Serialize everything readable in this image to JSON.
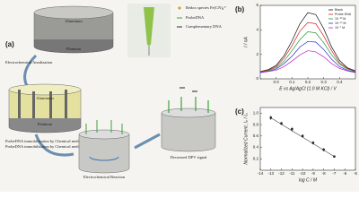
{
  "diagram": {
    "panel_label": "(a)",
    "top_metal": "Aluminum",
    "bottom_metal": "Platinum",
    "step1": "Electrochemical Anodization",
    "porous_metal": "Aluminum",
    "porous_base": "Platinum",
    "step2": "ProbeDNA immobilization by Chemical methods",
    "step3": "Electrochemical Reaction",
    "result": "Decreased DPV signal",
    "legend": [
      "Redox species Fe(CN)₆³⁻",
      "ProbeDNA",
      "Complementary DNA"
    ]
  },
  "chart_data": [
    {
      "type": "line",
      "panel_label": "(b)",
      "xlabel": "E vs Ag/AgCl (1.0 M KCl) / V",
      "ylabel": "I / nA",
      "x": [
        -0.1,
        -0.05,
        0,
        0.05,
        0.1,
        0.15,
        0.2,
        0.25,
        0.3,
        0.35,
        0.4,
        0.45,
        0.5
      ],
      "xlim": [
        -0.1,
        0.5
      ],
      "xticks": [
        {
          "value": 0,
          "label": "0.0"
        },
        0.1,
        0.2,
        0.3,
        0.4
      ],
      "ylim": [
        0,
        6
      ],
      "yticks": [
        0,
        2,
        4,
        6
      ],
      "series": [
        {
          "name": "Blank",
          "color": "#111111",
          "values": [
            0.6,
            0.75,
            1.1,
            1.9,
            3.1,
            4.5,
            5.4,
            5.25,
            4.1,
            2.6,
            1.5,
            0.9,
            0.65
          ]
        },
        {
          "name": "Probe DNA",
          "color": "#d42020",
          "values": [
            0.6,
            0.7,
            1.0,
            1.7,
            2.7,
            3.9,
            4.6,
            4.5,
            3.5,
            2.3,
            1.3,
            0.85,
            0.6
          ]
        },
        {
          "name": "10⁻¹³ M",
          "color": "#1f9a2a",
          "values": [
            0.55,
            0.65,
            0.9,
            1.45,
            2.3,
            3.2,
            3.85,
            3.75,
            2.95,
            1.95,
            1.2,
            0.8,
            0.6
          ]
        },
        {
          "name": "10⁻¹⁰ M",
          "color": "#2030c8",
          "values": [
            0.55,
            0.6,
            0.8,
            1.25,
            1.85,
            2.6,
            3.05,
            3.0,
            2.4,
            1.6,
            1.0,
            0.7,
            0.55
          ]
        },
        {
          "name": "10⁻⁷ M",
          "color": "#c020c0",
          "values": [
            0.5,
            0.6,
            0.7,
            1.0,
            1.45,
            1.95,
            2.3,
            2.2,
            1.8,
            1.25,
            0.85,
            0.65,
            0.5
          ]
        }
      ]
    },
    {
      "type": "scatter",
      "panel_label": "(c)",
      "xlabel": "log C / M",
      "ylabel": "Normalized Current, Iₚ / I₀",
      "x": [
        -13,
        -12,
        -11,
        -10,
        -9,
        -8,
        -7
      ],
      "values": [
        0.92,
        0.82,
        0.72,
        0.6,
        0.48,
        0.36,
        0.24
      ],
      "errors": [
        0.04,
        0.03,
        0.04,
        0.03,
        0.03,
        0.03,
        0.02
      ],
      "color": "#222222",
      "xlim": [
        -14,
        -5
      ],
      "xticks": [
        -14,
        -13,
        -12,
        -11,
        -10,
        -9,
        -8,
        -7,
        -6,
        -5
      ],
      "ylim": [
        0,
        1.1
      ],
      "yticks": [
        0.2,
        0.4,
        0.6,
        0.8,
        {
          "value": 1,
          "label": "1.0"
        }
      ]
    }
  ]
}
